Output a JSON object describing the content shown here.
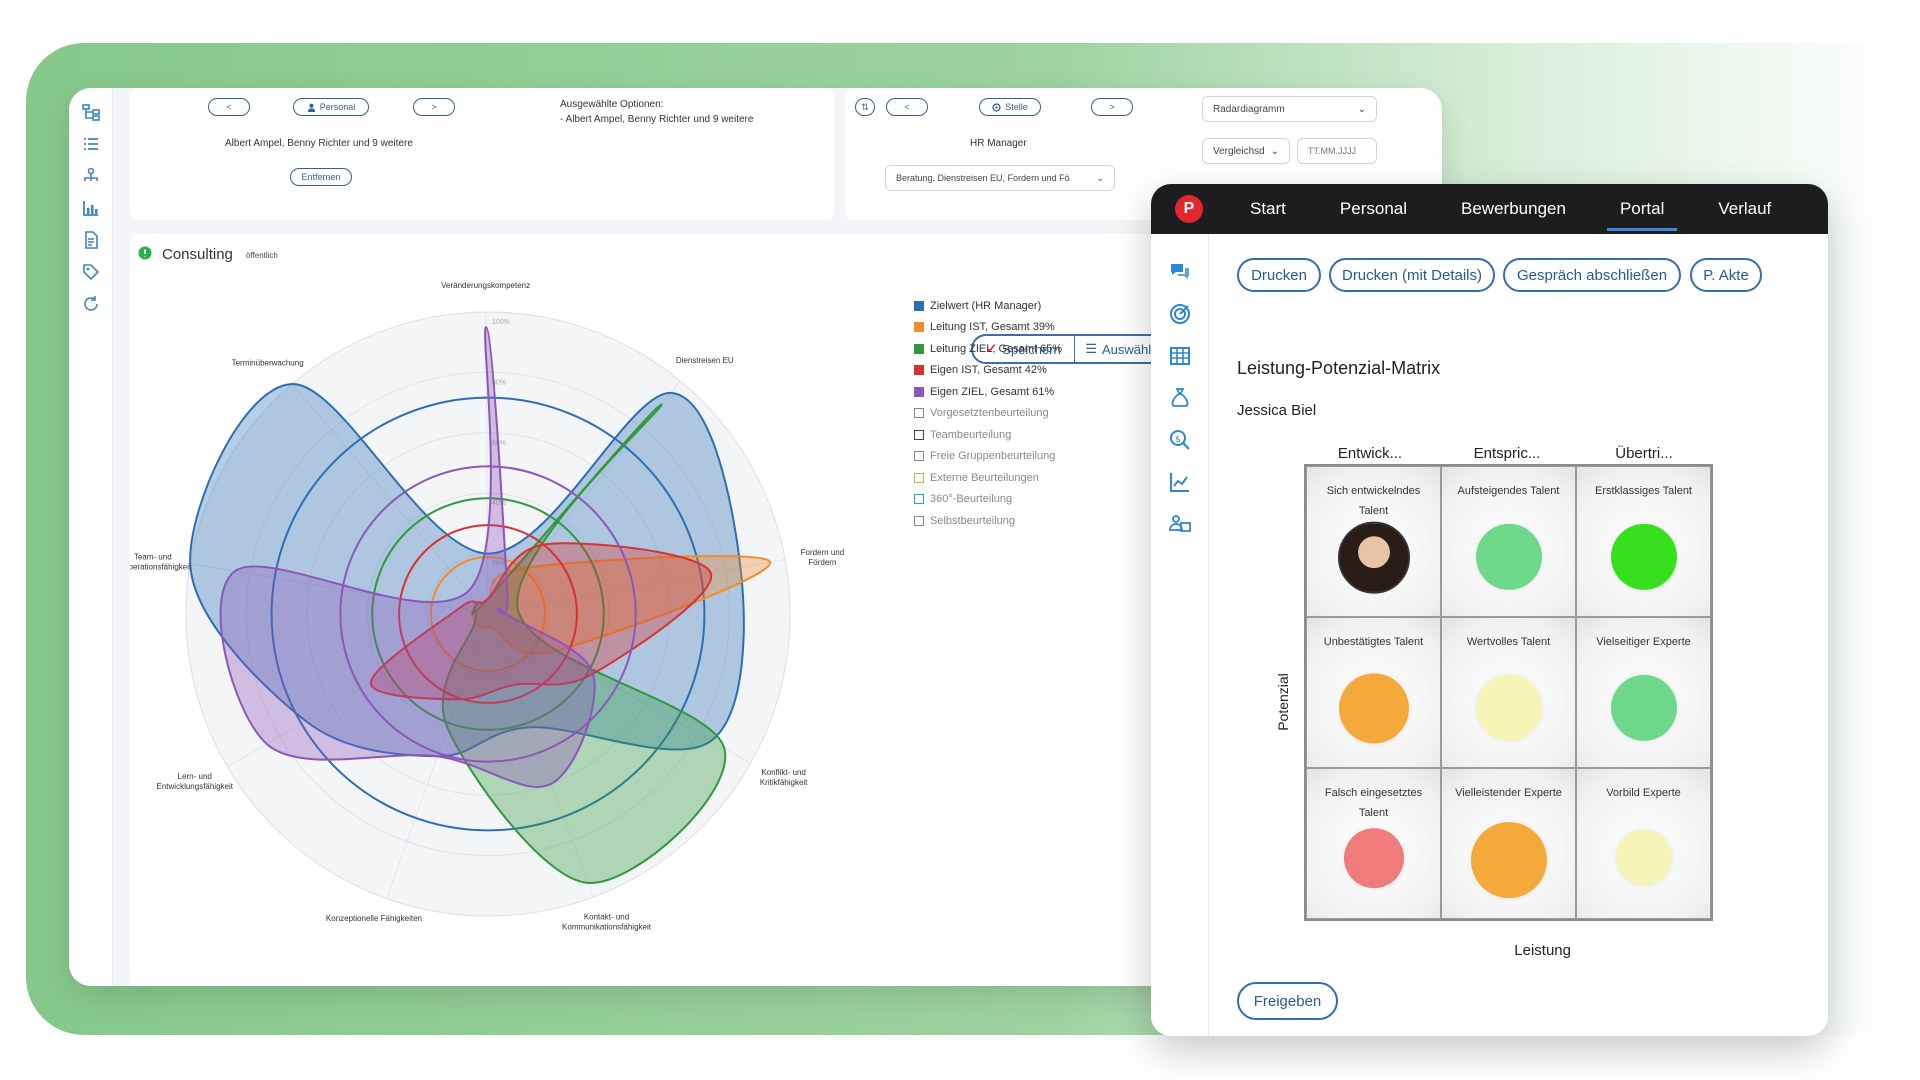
{
  "filters": {
    "left": {
      "prev": "<",
      "mode_label": "Personal",
      "next": ">",
      "selection_text": "Albert Ampel, Benny Richter und 9 weitere",
      "remove_label": "Entfernen",
      "options_title": "Ausgewählte Optionen:",
      "options_value": "- Albert Ampel, Benny Richter und 9 weitere"
    },
    "right": {
      "prev": "<",
      "mode_label": "Stelle",
      "next": ">",
      "position": "HR Manager",
      "criteria_select": "Beratung, Dienstreisen EU, Fordern und Fö",
      "view_select": "Radardiagramm",
      "compare_select": "Vergleichsd",
      "date_placeholder": "TT.MM.JJJJ"
    }
  },
  "chart_panel": {
    "title": "Consulting",
    "visibility": "öffentlich",
    "save_label": "Speichern",
    "select_label": "Auswählen",
    "legend": [
      {
        "label": "Zielwert (HR Manager)",
        "color": "#2a6fb5",
        "active": true
      },
      {
        "label": "Leitung IST, Gesamt 39%",
        "color": "#f28c28",
        "active": true
      },
      {
        "label": "Leitung ZIEL, Gesamt 65%",
        "color": "#2e9a3b",
        "active": true
      },
      {
        "label": "Eigen IST, Gesamt 42%",
        "color": "#d93030",
        "active": true
      },
      {
        "label": "Eigen ZIEL, Gesamt 61%",
        "color": "#8b57b8",
        "active": true
      },
      {
        "label": "Vorgesetztenbeurteilung",
        "color": "#888888",
        "active": false
      },
      {
        "label": "Teambeurteilung",
        "color": "#444444",
        "active": false
      },
      {
        "label": "Freie Gruppenbeurteilung",
        "color": "#888888",
        "active": false
      },
      {
        "label": "Externe Beurteilungen",
        "color": "#c7b92b",
        "active": false
      },
      {
        "label": "360°-Beurteilung",
        "color": "#29a7c8",
        "active": false
      },
      {
        "label": "Selbstbeurteilung",
        "color": "#888888",
        "active": false
      }
    ],
    "axes": [
      "Dienstreisen EU",
      "Fordern und Fördern",
      "Konflikt- und Kritikfähigkeit",
      "Kontakt- und Kommunikationsfähigkeit",
      "Konzeptionelle Fähigkeiten",
      "Lern- und Entwicklungsfähigkeit",
      "Team- und Kooperationsfähigkeit",
      "Terminüberwachung",
      "Veränderungskompetenz"
    ],
    "ring_labels": [
      "20%",
      "40%",
      "60%",
      "80%",
      "100%"
    ]
  },
  "chart_data": {
    "type": "radar",
    "categories": [
      "Dienstreisen EU",
      "Fordern und Fördern",
      "Konflikt- und Kritikfähigkeit",
      "Kontakt- und Kommunikationsfähigkeit",
      "Konzeptionelle Fähigkeiten",
      "Lern- und Entwicklungsfähigkeit",
      "Team- und Kooperationsfähigkeit",
      "Terminüberwachung",
      "Veränderungskompetenz"
    ],
    "ylim": [
      0,
      100
    ],
    "series": [
      {
        "name": "Zielwert (HR Manager)",
        "color": "#2a6fb5",
        "values": [
          95,
          85,
          85,
          40,
          50,
          70,
          100,
          100,
          20
        ]
      },
      {
        "name": "Leitung IST, Gesamt 39%",
        "color": "#f28c28",
        "values": [
          20,
          95,
          25,
          5,
          5,
          5,
          5,
          5,
          5
        ]
      },
      {
        "name": "Leitung ZIEL, Gesamt 65%",
        "color": "#2e9a3b",
        "values": [
          90,
          10,
          90,
          95,
          40,
          5,
          5,
          5,
          5
        ]
      },
      {
        "name": "Eigen IST, Gesamt 42%",
        "color": "#d93030",
        "values": [
          30,
          75,
          40,
          25,
          30,
          45,
          10,
          5,
          5
        ]
      },
      {
        "name": "Eigen ZIEL, Gesamt 61%",
        "color": "#8b57b8",
        "values": [
          10,
          5,
          40,
          60,
          50,
          85,
          85,
          10,
          95
        ]
      }
    ]
  },
  "front": {
    "nav": [
      "Start",
      "Personal",
      "Bewerbungen",
      "Portal",
      "Verlauf"
    ],
    "active_nav": "Portal",
    "buttons": [
      "Drucken",
      "Drucken (mit Details)",
      "Gespräch abschließen",
      "P. Akte"
    ],
    "matrix_title": "Leistung-Potenzial-Matrix",
    "person": "Jessica Biel",
    "col_headers": [
      "Entwick...",
      "Entspric...",
      "Übertri..."
    ],
    "y_axis": "Potenzial",
    "x_axis": "Leistung",
    "cells": [
      {
        "label": "Sich entwickelndes Talent",
        "color": "avatar"
      },
      {
        "label": "Aufsteigendes Talent",
        "color": "#6ed98a"
      },
      {
        "label": "Erstklassiges Talent",
        "color": "#36e01c"
      },
      {
        "label": "Unbestätigtes Talent",
        "color": "#f5a93a"
      },
      {
        "label": "Wertvolles Talent",
        "color": "#f5f5b8"
      },
      {
        "label": "Vielseitiger Experte",
        "color": "#6ed98a"
      },
      {
        "label": "Falsch eingesetztes Talent",
        "color": "#f07b7b"
      },
      {
        "label": "Vielleistender Experte",
        "color": "#f5a93a"
      },
      {
        "label": "Vorbild Experte",
        "color": "#f5f5b8"
      }
    ],
    "release_label": "Freigeben"
  }
}
